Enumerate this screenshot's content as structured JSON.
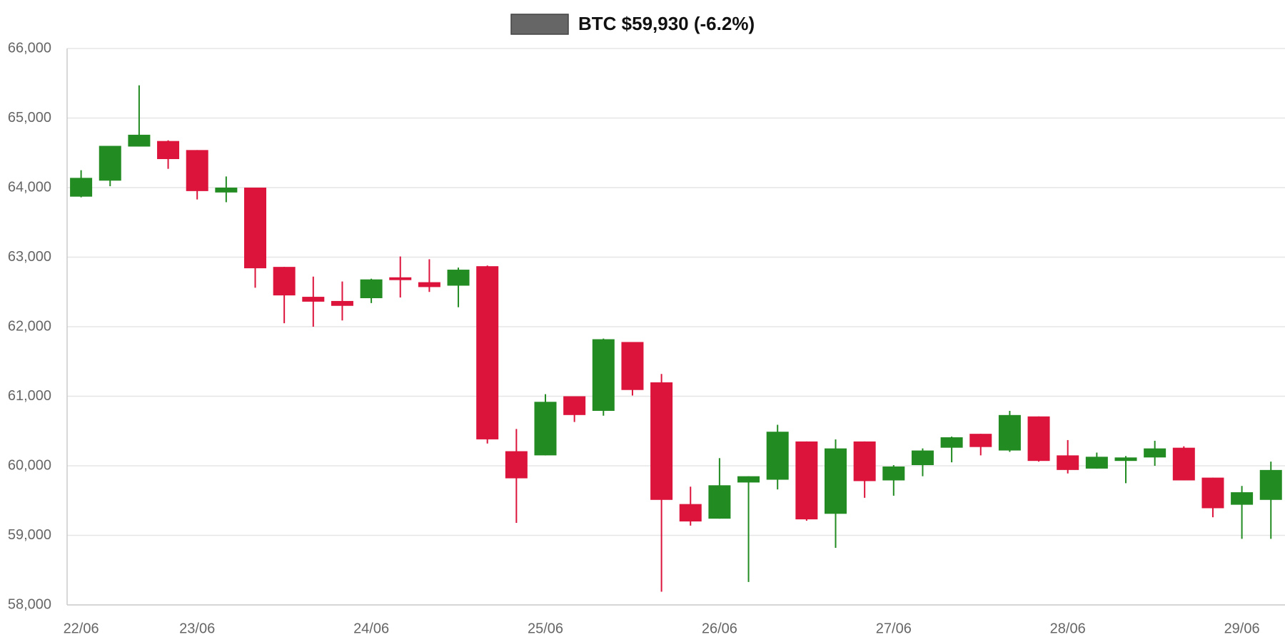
{
  "chart_data": {
    "type": "candlestick",
    "up_color": "#228b22",
    "down_color": "#dc143c",
    "grid": true,
    "categories": [
      "22/06",
      null,
      null,
      null,
      "23/06",
      null,
      null,
      null,
      null,
      null,
      "24/06",
      null,
      null,
      null,
      null,
      null,
      "25/06",
      null,
      null,
      null,
      null,
      null,
      "26/06",
      null,
      null,
      null,
      null,
      null,
      "27/06",
      null,
      null,
      null,
      null,
      null,
      "28/06",
      null,
      null,
      null,
      null,
      null,
      "29/06",
      null
    ],
    "series": [
      {
        "name": "BTC $59,930 (-6.2%)",
        "color": "#666666",
        "open": [
          63870,
          64100,
          64590,
          64670,
          64540,
          63930,
          64000,
          62860,
          62430,
          62370,
          62410,
          62710,
          62640,
          62590,
          62870,
          60210,
          60150,
          61000,
          60790,
          61780,
          61200,
          59450,
          59240,
          59760,
          59800,
          60350,
          59310,
          60350,
          59790,
          60010,
          60260,
          60460,
          60220,
          60710,
          60150,
          59960,
          60070,
          60120,
          60260,
          59830,
          59440,
          59510
        ],
        "high": [
          64250,
          64600,
          65470,
          64680,
          64540,
          64160,
          64000,
          62860,
          62720,
          62650,
          62690,
          63010,
          62970,
          62850,
          62880,
          60530,
          61030,
          61000,
          61830,
          61780,
          61320,
          59700,
          60110,
          59850,
          60590,
          60350,
          60380,
          60350,
          60010,
          60250,
          60420,
          60460,
          60790,
          60710,
          60370,
          60190,
          60140,
          60360,
          60280,
          59830,
          59710,
          60060
        ],
        "low": [
          63860,
          64020,
          64590,
          64270,
          63830,
          63790,
          62560,
          62050,
          62000,
          62090,
          62340,
          62420,
          62500,
          62280,
          60320,
          59180,
          60150,
          60630,
          60720,
          61010,
          58190,
          59140,
          59240,
          58330,
          59660,
          59210,
          58820,
          59540,
          59570,
          59850,
          60050,
          60150,
          60200,
          60060,
          59890,
          59960,
          59750,
          60000,
          59790,
          59260,
          58950,
          58950
        ],
        "close": [
          64140,
          64600,
          64760,
          64410,
          63950,
          64000,
          62840,
          62450,
          62360,
          62300,
          62680,
          62670,
          62570,
          62820,
          60380,
          59820,
          60920,
          60730,
          61820,
          61090,
          59510,
          59200,
          59720,
          59850,
          60490,
          59230,
          60250,
          59780,
          59990,
          60220,
          60410,
          60270,
          60730,
          60070,
          59940,
          60130,
          60120,
          60250,
          59790,
          59390,
          59620,
          59940
        ]
      }
    ],
    "ylim": [
      58000,
      66000
    ],
    "yticks": [
      {
        "value": 58000,
        "label": "58,000"
      },
      {
        "value": 59000,
        "label": "59,000"
      },
      {
        "value": 60000,
        "label": "60,000"
      },
      {
        "value": 61000,
        "label": "61,000"
      },
      {
        "value": 62000,
        "label": "62,000"
      },
      {
        "value": 63000,
        "label": "63,000"
      },
      {
        "value": 64000,
        "label": "64,000"
      },
      {
        "value": 65000,
        "label": "65,000"
      },
      {
        "value": 66000,
        "label": "66,000"
      }
    ]
  }
}
